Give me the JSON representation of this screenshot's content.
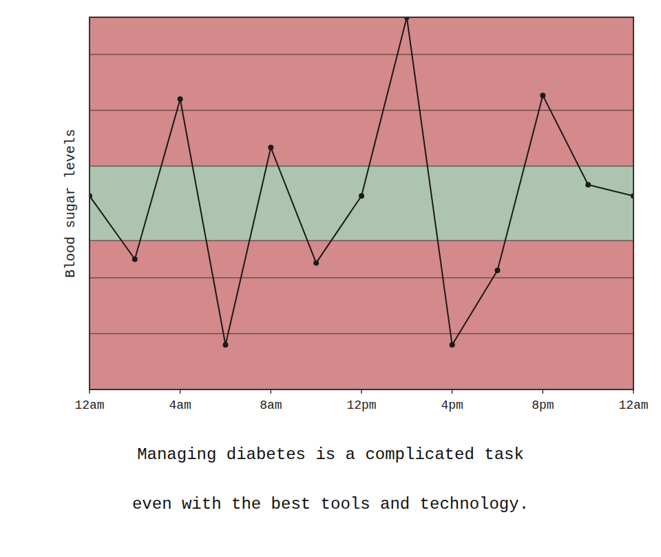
{
  "chart_data": {
    "type": "line",
    "x": [
      0,
      2,
      4,
      6,
      8,
      10,
      12,
      14,
      16,
      18,
      20,
      22,
      24
    ],
    "values": [
      5.2,
      3.5,
      7.8,
      1.2,
      6.5,
      3.4,
      5.2,
      10.0,
      1.2,
      3.2,
      7.9,
      5.5,
      5.2
    ],
    "color": "#1a1a1a",
    "marker": "circle",
    "y_label": "Blood sugar levels",
    "annotations": [
      "Managing diabetes is a complicated task",
      "even with the best tools and technology."
    ],
    "xlim": [
      0,
      24
    ],
    "xticks": [
      {
        "value": 0,
        "label": "12am"
      },
      {
        "value": 4,
        "label": "4am"
      },
      {
        "value": 8,
        "label": "8am"
      },
      {
        "value": 12,
        "label": "12pm"
      },
      {
        "value": 16,
        "label": "4pm"
      },
      {
        "value": 20,
        "label": "8pm"
      },
      {
        "value": 24,
        "label": "12am"
      }
    ],
    "ylim": [
      0,
      10
    ],
    "yticks": [
      1.5,
      3.0,
      4.0,
      6.0,
      7.5,
      9.0
    ],
    "grid": true,
    "tick_labels": "x",
    "band": {
      "from": 4.0,
      "to": 6.0,
      "color": "#adc4b0",
      "outside_color": "#d4898a"
    }
  }
}
